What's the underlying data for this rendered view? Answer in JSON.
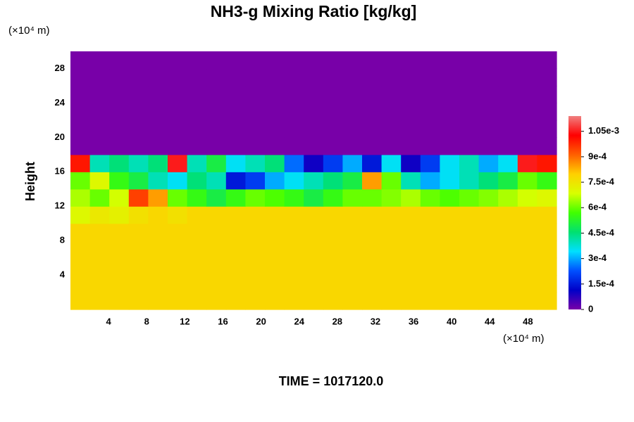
{
  "chart_data": {
    "type": "heatmap",
    "title": "NH3-g Mixing Ratio [kg/kg]",
    "xlabel": "(×10⁴ m)",
    "ylabel": "Height",
    "yunit": "(×10⁴ m)",
    "footer": "TIME = 1017120.0",
    "xlim": [
      0,
      51
    ],
    "ylim": [
      0,
      30
    ],
    "xticks": [
      4,
      8,
      12,
      16,
      20,
      24,
      28,
      32,
      36,
      40,
      44,
      48
    ],
    "yticks": [
      4,
      8,
      12,
      16,
      20,
      24,
      28
    ],
    "clim": [
      0,
      0.00114
    ],
    "cticks": [
      0,
      {
        "value": 0.00015,
        "label": "1.5e-4"
      },
      {
        "value": 0.0003,
        "label": "3e-4"
      },
      {
        "value": 0.00045,
        "label": "4.5e-4"
      },
      {
        "value": 0.0006,
        "label": "6e-4"
      },
      {
        "value": 0.00075,
        "label": "7.5e-4"
      },
      {
        "value": 0.0009,
        "label": "9e-4"
      },
      {
        "value": 0.00105,
        "label": "1.05e-3"
      }
    ],
    "colormap": [
      "#7800a8",
      "#0000c8",
      "#0050ff",
      "#00e0ff",
      "#00e070",
      "#40ff00",
      "#d8ff00",
      "#ffd000",
      "#ff6000",
      "#ff0000",
      "#f08080"
    ],
    "z": [
      [
        0.00078,
        0.00078,
        0.00078,
        0.00078,
        0.00078,
        0.00078,
        0.00078,
        0.00078,
        0.00078,
        0.00078,
        0.00078,
        0.00078,
        0.00078,
        0.00078,
        0.00078,
        0.00078,
        0.00078,
        0.00078,
        0.00078,
        0.00078,
        0.00078,
        0.00078,
        0.00078,
        0.00078,
        0.00078
      ],
      [
        0.00078,
        0.00078,
        0.00078,
        0.00078,
        0.00078,
        0.00078,
        0.00078,
        0.00078,
        0.00078,
        0.00078,
        0.00078,
        0.00078,
        0.00078,
        0.00078,
        0.00078,
        0.00078,
        0.00078,
        0.00078,
        0.00078,
        0.00078,
        0.00078,
        0.00078,
        0.00078,
        0.00078,
        0.00078
      ],
      [
        0.00078,
        0.00078,
        0.00078,
        0.00078,
        0.00078,
        0.00078,
        0.00078,
        0.00078,
        0.00078,
        0.00078,
        0.00078,
        0.00078,
        0.00078,
        0.00078,
        0.00078,
        0.00078,
        0.00078,
        0.00078,
        0.00078,
        0.00078,
        0.00078,
        0.00078,
        0.00078,
        0.00078,
        0.00078
      ],
      [
        0.00078,
        0.00078,
        0.00078,
        0.00078,
        0.00078,
        0.00078,
        0.00078,
        0.00078,
        0.00078,
        0.00078,
        0.00078,
        0.00078,
        0.00078,
        0.00078,
        0.00078,
        0.00078,
        0.00078,
        0.00078,
        0.00078,
        0.00078,
        0.00078,
        0.00078,
        0.00078,
        0.00078,
        0.00078
      ],
      [
        0.00078,
        0.00078,
        0.00078,
        0.00078,
        0.00078,
        0.00078,
        0.00078,
        0.00078,
        0.00078,
        0.00078,
        0.00078,
        0.00078,
        0.00078,
        0.00078,
        0.00078,
        0.00078,
        0.00078,
        0.00078,
        0.00078,
        0.00078,
        0.00078,
        0.00078,
        0.00078,
        0.00078,
        0.00078
      ],
      [
        0.0007,
        0.00074,
        0.00072,
        0.00076,
        0.00078,
        0.00076,
        0.00078,
        0.00078,
        0.00078,
        0.00078,
        0.00078,
        0.00078,
        0.00078,
        0.00078,
        0.00078,
        0.00078,
        0.00078,
        0.00078,
        0.00078,
        0.00078,
        0.00078,
        0.00078,
        0.00078,
        0.00078,
        0.00078
      ],
      [
        0.00065,
        0.0006,
        0.00068,
        0.00095,
        0.00085,
        0.0006,
        0.00055,
        0.0005,
        0.00055,
        0.0006,
        0.00058,
        0.00055,
        0.0005,
        0.00055,
        0.0006,
        0.0006,
        0.00062,
        0.00065,
        0.0006,
        0.00058,
        0.0006,
        0.00062,
        0.00065,
        0.00068,
        0.0007
      ],
      [
        0.0006,
        0.0007,
        0.00055,
        0.0005,
        0.0004,
        0.00035,
        0.00045,
        0.0004,
        0.00015,
        0.0002,
        0.0003,
        0.00035,
        0.0004,
        0.00045,
        0.0005,
        0.00085,
        0.0006,
        0.0004,
        0.0003,
        0.00035,
        0.0004,
        0.00045,
        0.0005,
        0.0006,
        0.00055
      ],
      [
        0.001,
        0.0004,
        0.00045,
        0.0004,
        0.00045,
        0.00105,
        0.0004,
        0.0005,
        0.00035,
        0.0004,
        0.00045,
        0.00025,
        0.0001,
        0.0002,
        0.0003,
        0.00015,
        0.00035,
        0.0001,
        0.0002,
        0.00035,
        0.0004,
        0.0003,
        0.00035,
        0.00105,
        0.001
      ],
      [
        0,
        0,
        0,
        0,
        0,
        0,
        0,
        0,
        0,
        0,
        0,
        0,
        0,
        0,
        0,
        0,
        0,
        0,
        0,
        0,
        0,
        0,
        0,
        0,
        0
      ],
      [
        0,
        0,
        0,
        0,
        0,
        0,
        0,
        0,
        0,
        0,
        0,
        0,
        0,
        0,
        0,
        0,
        0,
        0,
        0,
        0,
        0,
        0,
        0,
        0,
        0
      ],
      [
        0,
        0,
        0,
        0,
        0,
        0,
        0,
        0,
        0,
        0,
        0,
        0,
        0,
        0,
        0,
        0,
        0,
        0,
        0,
        0,
        0,
        0,
        0,
        0,
        0
      ],
      [
        0,
        0,
        0,
        0,
        0,
        0,
        0,
        0,
        0,
        0,
        0,
        0,
        0,
        0,
        0,
        0,
        0,
        0,
        0,
        0,
        0,
        0,
        0,
        0,
        0
      ],
      [
        0,
        0,
        0,
        0,
        0,
        0,
        0,
        0,
        0,
        0,
        0,
        0,
        0,
        0,
        0,
        0,
        0,
        0,
        0,
        0,
        0,
        0,
        0,
        0,
        0
      ],
      [
        0,
        0,
        0,
        0,
        0,
        0,
        0,
        0,
        0,
        0,
        0,
        0,
        0,
        0,
        0,
        0,
        0,
        0,
        0,
        0,
        0,
        0,
        0,
        0,
        0
      ]
    ]
  }
}
